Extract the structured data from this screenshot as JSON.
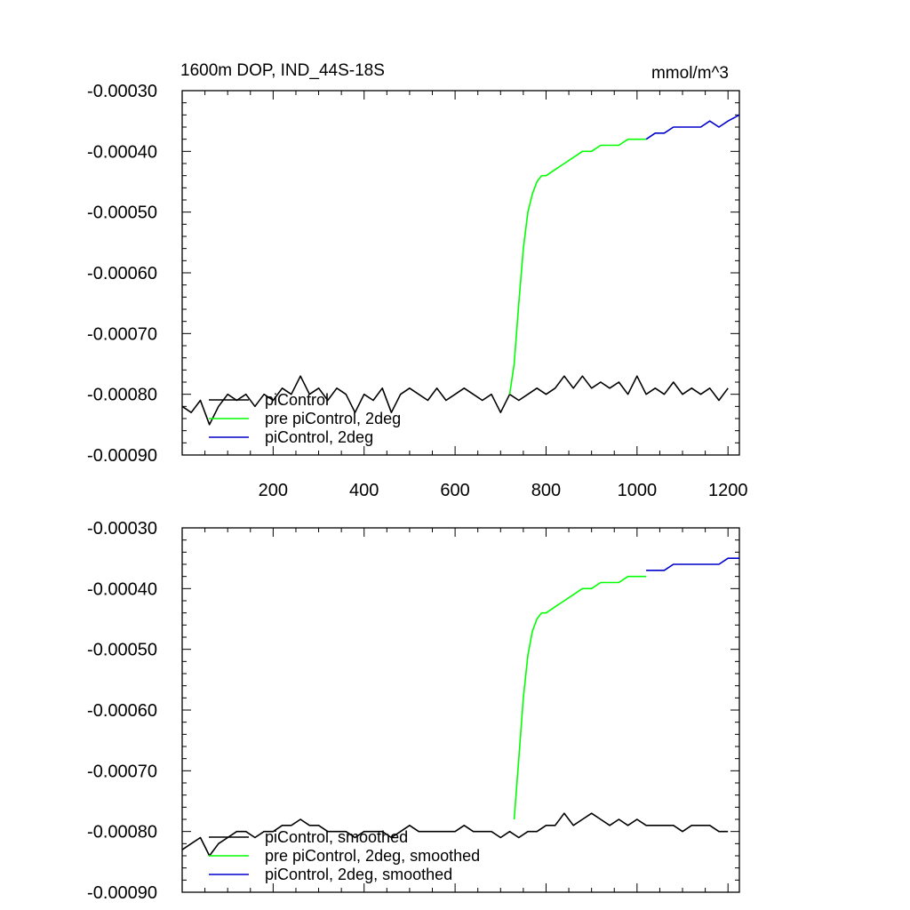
{
  "chart_data": [
    {
      "type": "line",
      "title": "1600m DOP, IND_44S-18S",
      "units": "mmol/m^3",
      "xlim": [
        0,
        1225
      ],
      "ylim": [
        -0.0009,
        -0.0003
      ],
      "x_ticks": [
        200,
        400,
        600,
        800,
        1000,
        1200
      ],
      "x_tick_labels": [
        "200",
        "400",
        "600",
        "800",
        "1000",
        "1200"
      ],
      "y_ticks": [
        -0.0003,
        -0.0004,
        -0.0005,
        -0.0006,
        -0.0007,
        -0.0008,
        -0.0009
      ],
      "y_tick_labels": [
        "-0.00030",
        "-0.00040",
        "-0.00050",
        "-0.00060",
        "-0.00070",
        "-0.00080",
        "-0.00090"
      ],
      "grid": false,
      "legend_position": "bottom-left",
      "series": [
        {
          "name": "piControl",
          "color": "#000000",
          "x": [
            0,
            20,
            40,
            60,
            80,
            100,
            120,
            140,
            160,
            180,
            200,
            220,
            240,
            260,
            280,
            300,
            320,
            340,
            360,
            380,
            400,
            420,
            440,
            460,
            480,
            500,
            520,
            540,
            560,
            580,
            600,
            620,
            640,
            660,
            680,
            700,
            720,
            740,
            760,
            780,
            800,
            820,
            840,
            860,
            880,
            900,
            920,
            940,
            960,
            980,
            1000,
            1020,
            1040,
            1060,
            1080,
            1100,
            1120,
            1140,
            1160,
            1180,
            1200
          ],
          "y": [
            -0.00082,
            -0.00083,
            -0.00081,
            -0.00085,
            -0.00082,
            -0.0008,
            -0.00081,
            -0.0008,
            -0.00082,
            -0.0008,
            -0.00081,
            -0.00079,
            -0.0008,
            -0.00077,
            -0.0008,
            -0.00079,
            -0.00081,
            -0.00079,
            -0.0008,
            -0.00083,
            -0.0008,
            -0.00081,
            -0.00079,
            -0.00083,
            -0.0008,
            -0.00079,
            -0.0008,
            -0.00081,
            -0.00079,
            -0.00081,
            -0.0008,
            -0.00079,
            -0.0008,
            -0.00081,
            -0.0008,
            -0.00083,
            -0.0008,
            -0.00081,
            -0.0008,
            -0.00079,
            -0.0008,
            -0.00079,
            -0.00077,
            -0.00079,
            -0.00077,
            -0.00079,
            -0.00078,
            -0.00079,
            -0.00078,
            -0.0008,
            -0.00077,
            -0.0008,
            -0.00079,
            -0.0008,
            -0.00078,
            -0.0008,
            -0.00079,
            -0.0008,
            -0.00079,
            -0.00081,
            -0.00079
          ]
        },
        {
          "name": "pre piControl, 2deg",
          "color": "#00ff00",
          "x": [
            720,
            730,
            740,
            750,
            760,
            770,
            780,
            790,
            800,
            820,
            840,
            860,
            880,
            900,
            920,
            940,
            960,
            980,
            1000,
            1020
          ],
          "y": [
            -0.0008,
            -0.00075,
            -0.00065,
            -0.00056,
            -0.0005,
            -0.00047,
            -0.00045,
            -0.00044,
            -0.00044,
            -0.00043,
            -0.00042,
            -0.00041,
            -0.0004,
            -0.0004,
            -0.00039,
            -0.00039,
            -0.00039,
            -0.00038,
            -0.00038,
            -0.00038
          ]
        },
        {
          "name": "piControl, 2deg",
          "color": "#0000cc",
          "x": [
            1020,
            1040,
            1060,
            1080,
            1100,
            1120,
            1140,
            1160,
            1180,
            1200,
            1225
          ],
          "y": [
            -0.00038,
            -0.00037,
            -0.00037,
            -0.00036,
            -0.00036,
            -0.00036,
            -0.00036,
            -0.00035,
            -0.00036,
            -0.00035,
            -0.00034
          ]
        }
      ]
    },
    {
      "type": "line",
      "xlim": [
        0,
        1225
      ],
      "ylim": [
        -0.0009,
        -0.0003
      ],
      "x_ticks": [
        200,
        400,
        600,
        800,
        1000,
        1200
      ],
      "y_ticks": [
        -0.0003,
        -0.0004,
        -0.0005,
        -0.0006,
        -0.0007,
        -0.0008,
        -0.0009
      ],
      "y_tick_labels": [
        "-0.00030",
        "-0.00040",
        "-0.00050",
        "-0.00060",
        "-0.00070",
        "-0.00080",
        "-0.00090"
      ],
      "grid": false,
      "legend_position": "bottom-left",
      "series": [
        {
          "name": "piControl, smoothed",
          "color": "#000000",
          "x": [
            0,
            20,
            40,
            60,
            80,
            100,
            120,
            140,
            160,
            180,
            200,
            220,
            240,
            260,
            280,
            300,
            320,
            340,
            360,
            380,
            400,
            420,
            440,
            460,
            480,
            500,
            520,
            540,
            560,
            580,
            600,
            620,
            640,
            660,
            680,
            700,
            720,
            740,
            760,
            780,
            800,
            820,
            840,
            860,
            880,
            900,
            920,
            940,
            960,
            980,
            1000,
            1020,
            1040,
            1060,
            1080,
            1100,
            1120,
            1140,
            1160,
            1180,
            1200
          ],
          "y": [
            -0.00083,
            -0.00082,
            -0.00081,
            -0.00084,
            -0.00082,
            -0.00081,
            -0.0008,
            -0.0008,
            -0.00081,
            -0.0008,
            -0.0008,
            -0.00079,
            -0.00079,
            -0.00078,
            -0.00079,
            -0.00079,
            -0.0008,
            -0.0008,
            -0.0008,
            -0.00081,
            -0.0008,
            -0.0008,
            -0.0008,
            -0.00081,
            -0.0008,
            -0.00079,
            -0.0008,
            -0.0008,
            -0.0008,
            -0.0008,
            -0.0008,
            -0.00079,
            -0.0008,
            -0.0008,
            -0.0008,
            -0.00081,
            -0.0008,
            -0.00081,
            -0.0008,
            -0.0008,
            -0.00079,
            -0.00079,
            -0.00077,
            -0.00079,
            -0.00078,
            -0.00077,
            -0.00078,
            -0.00079,
            -0.00078,
            -0.00079,
            -0.00078,
            -0.00079,
            -0.00079,
            -0.00079,
            -0.00079,
            -0.0008,
            -0.00079,
            -0.00079,
            -0.00079,
            -0.0008,
            -0.0008
          ]
        },
        {
          "name": "pre piControl, 2deg, smoothed",
          "color": "#00ff00",
          "x": [
            730,
            740,
            750,
            760,
            770,
            780,
            790,
            800,
            820,
            840,
            860,
            880,
            900,
            920,
            940,
            960,
            980,
            1000,
            1020
          ],
          "y": [
            -0.00078,
            -0.00068,
            -0.00058,
            -0.00051,
            -0.00047,
            -0.00045,
            -0.00044,
            -0.00044,
            -0.00043,
            -0.00042,
            -0.00041,
            -0.0004,
            -0.0004,
            -0.00039,
            -0.00039,
            -0.00039,
            -0.00038,
            -0.00038,
            -0.00038
          ]
        },
        {
          "name": "piControl, 2deg, smoothed",
          "color": "#0000cc",
          "x": [
            1020,
            1040,
            1060,
            1080,
            1100,
            1120,
            1140,
            1160,
            1180,
            1200,
            1225
          ],
          "y": [
            -0.00037,
            -0.00037,
            -0.00037,
            -0.00036,
            -0.00036,
            -0.00036,
            -0.00036,
            -0.00036,
            -0.00036,
            -0.00035,
            -0.00035
          ]
        }
      ]
    }
  ]
}
